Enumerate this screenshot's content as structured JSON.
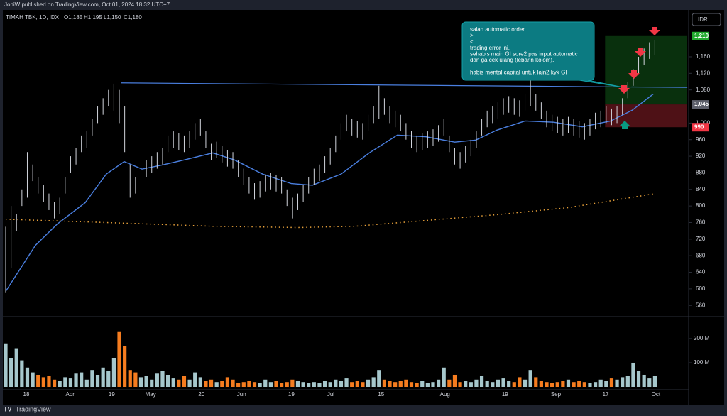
{
  "header": {
    "published": "JoniW published on TradingView.com, Oct 01, 2024 18:32 UTC+7",
    "brand": "TradingView"
  },
  "chart_data": {
    "type": "ohlc",
    "title": "TIMAH TBK, 1D, IDX",
    "ohlc_legend": [
      "O1,185",
      "H1,195",
      "L1,150",
      "C1,180"
    ],
    "currency": "IDR",
    "ylim": [
      533,
      1273
    ],
    "yticks": [
      560,
      600,
      640,
      680,
      720,
      760,
      800,
      840,
      880,
      920,
      960,
      {
        "value": 1000,
        "label": "1,000"
      },
      {
        "value": 1080,
        "label": "1,080"
      },
      {
        "value": 1120,
        "label": "1,120"
      },
      {
        "value": 1160,
        "label": "1,160"
      }
    ],
    "xlim": [
      -0.4,
      126
    ],
    "xticks": [
      {
        "value": 3.8,
        "label": "18"
      },
      {
        "value": 11.9,
        "label": "Apr"
      },
      {
        "value": 19.6,
        "label": "19"
      },
      {
        "value": 26.8,
        "label": "May"
      },
      {
        "value": 36.2,
        "label": "20"
      },
      {
        "value": 43.6,
        "label": "Jun"
      },
      {
        "value": 52.8,
        "label": "19"
      },
      {
        "value": 60.1,
        "label": "Jul"
      },
      {
        "value": 69.4,
        "label": "15"
      },
      {
        "value": 81.2,
        "label": "Aug"
      },
      {
        "value": 92.3,
        "label": "19"
      },
      {
        "value": 101.7,
        "label": "Sep"
      },
      {
        "value": 110.9,
        "label": "17"
      },
      {
        "value": 120.2,
        "label": "Oct"
      }
    ],
    "high": [
      750,
      800,
      780,
      840,
      930,
      900,
      870,
      850,
      830,
      810,
      820,
      870,
      920,
      940,
      970,
      980,
      1010,
      1040,
      1060,
      1080,
      1095,
      1080,
      1040,
      900,
      870,
      890,
      910,
      920,
      930,
      940,
      970,
      980,
      975,
      970,
      980,
      1000,
      1010,
      980,
      950,
      955,
      945,
      935,
      930,
      910,
      890,
      870,
      855,
      860,
      875,
      880,
      875,
      870,
      840,
      820,
      830,
      850,
      870,
      890,
      900,
      920,
      940,
      970,
      1000,
      1020,
      1010,
      1005,
      1000,
      1020,
      1040,
      1090,
      1060,
      1040,
      1030,
      1020,
      1000,
      980,
      970,
      975,
      980,
      985,
      995,
      1010,
      970,
      940,
      930,
      945,
      960,
      980,
      1010,
      1030,
      1040,
      1050,
      1060,
      1065,
      1060,
      1055,
      1070,
      1105,
      1070,
      1050,
      1030,
      1020,
      1015,
      1010,
      1015,
      1010,
      1005,
      1000,
      1010,
      1025,
      1030,
      1040,
      1035,
      1040,
      1060,
      1100,
      1130,
      1160,
      1180,
      1195,
      1200
    ],
    "low": [
      590,
      650,
      740,
      800,
      820,
      860,
      830,
      810,
      790,
      770,
      780,
      830,
      880,
      900,
      930,
      940,
      970,
      1000,
      1020,
      1040,
      1030,
      1000,
      930,
      820,
      830,
      850,
      870,
      880,
      890,
      900,
      930,
      940,
      935,
      930,
      940,
      960,
      970,
      940,
      910,
      915,
      905,
      895,
      890,
      870,
      850,
      830,
      815,
      820,
      835,
      840,
      835,
      830,
      800,
      770,
      790,
      810,
      830,
      850,
      860,
      880,
      900,
      930,
      960,
      980,
      970,
      965,
      960,
      980,
      1000,
      1010,
      1020,
      1000,
      990,
      980,
      960,
      940,
      930,
      935,
      940,
      945,
      955,
      970,
      930,
      900,
      890,
      905,
      920,
      940,
      970,
      990,
      1000,
      1010,
      1020,
      1025,
      1020,
      1015,
      1030,
      1040,
      1030,
      1010,
      990,
      980,
      975,
      970,
      975,
      970,
      965,
      960,
      970,
      985,
      990,
      1000,
      995,
      1000,
      1020,
      1060,
      1090,
      1120,
      1140,
      1155,
      1165
    ],
    "bar_color": "#d1d4dc",
    "volume": {
      "values": [
        180,
        120,
        160,
        110,
        80,
        60,
        50,
        40,
        45,
        30,
        25,
        40,
        35,
        55,
        60,
        30,
        70,
        50,
        80,
        65,
        120,
        230,
        170,
        70,
        60,
        40,
        45,
        30,
        55,
        65,
        50,
        35,
        30,
        45,
        30,
        60,
        40,
        25,
        30,
        20,
        25,
        40,
        30,
        15,
        20,
        25,
        20,
        15,
        30,
        20,
        25,
        15,
        20,
        30,
        25,
        20,
        15,
        20,
        15,
        25,
        20,
        30,
        25,
        35,
        20,
        25,
        20,
        30,
        40,
        70,
        30,
        25,
        20,
        25,
        30,
        20,
        15,
        25,
        15,
        20,
        30,
        80,
        30,
        50,
        20,
        25,
        20,
        30,
        45,
        25,
        20,
        30,
        35,
        25,
        20,
        40,
        30,
        70,
        40,
        25,
        20,
        15,
        20,
        25,
        30,
        20,
        25,
        20,
        15,
        20,
        30,
        25,
        35,
        30,
        40,
        45,
        100,
        65,
        50,
        35,
        45
      ],
      "up_color": "#a6c7cc",
      "down_color": "#f57c1f",
      "ylim": [
        0,
        288
      ],
      "yticks": [
        {
          "value": 100,
          "label": "100 M"
        },
        {
          "value": 200,
          "label": "200 M"
        }
      ]
    },
    "ma": {
      "color": "#4a7fe0",
      "x": [
        0,
        5.5,
        9.5,
        14.7,
        18.6,
        21.9,
        25.2,
        29,
        33,
        38.3,
        42.3,
        47.5,
        52.8,
        56.7,
        62,
        67.2,
        72.4,
        77.7,
        83,
        86.9,
        90.8,
        96,
        101.3,
        106.6,
        111.8,
        115.8,
        119.7
      ],
      "values": [
        594,
        705,
        756,
        808,
        877,
        907,
        889,
        899,
        911,
        928,
        911,
        877,
        854,
        850,
        877,
        928,
        971,
        967,
        954,
        959,
        983,
        1005,
        1002,
        991,
        1005,
        1031,
        1070
      ]
    },
    "ma_long": {
      "color": "#e8a13a",
      "x": [
        0,
        18.6,
        38.3,
        54,
        64.6,
        77.7,
        90.8,
        104,
        119.7
      ],
      "values": [
        768,
        760,
        751,
        748,
        751,
        765,
        779,
        796,
        829
      ]
    },
    "trendline": {
      "color": "#4a7fe0",
      "x": [
        21.3,
        126
      ],
      "values": [
        1097,
        1086
      ]
    },
    "position": {
      "x": [
        110.8,
        126
      ],
      "target": 1210,
      "entry": 1045,
      "stop": 990
    },
    "price_labels": [
      {
        "value": 1210,
        "label": "1,210",
        "color": "#22ab2e"
      },
      {
        "value": 1045,
        "label": "1,045",
        "color": "#5d606b"
      },
      {
        "value": 990,
        "label": "990",
        "color": "#f23645"
      }
    ],
    "annotation": [
      [
        "salah automatic order.",
        ">",
        "<",
        "trading error ini.",
        "sehabis main GI sore2 pas input automatic",
        "dan ga cek ulang (lebarin kolom)."
      ],
      [
        "habis mental capital untuk lain2 kyk GI"
      ]
    ]
  }
}
